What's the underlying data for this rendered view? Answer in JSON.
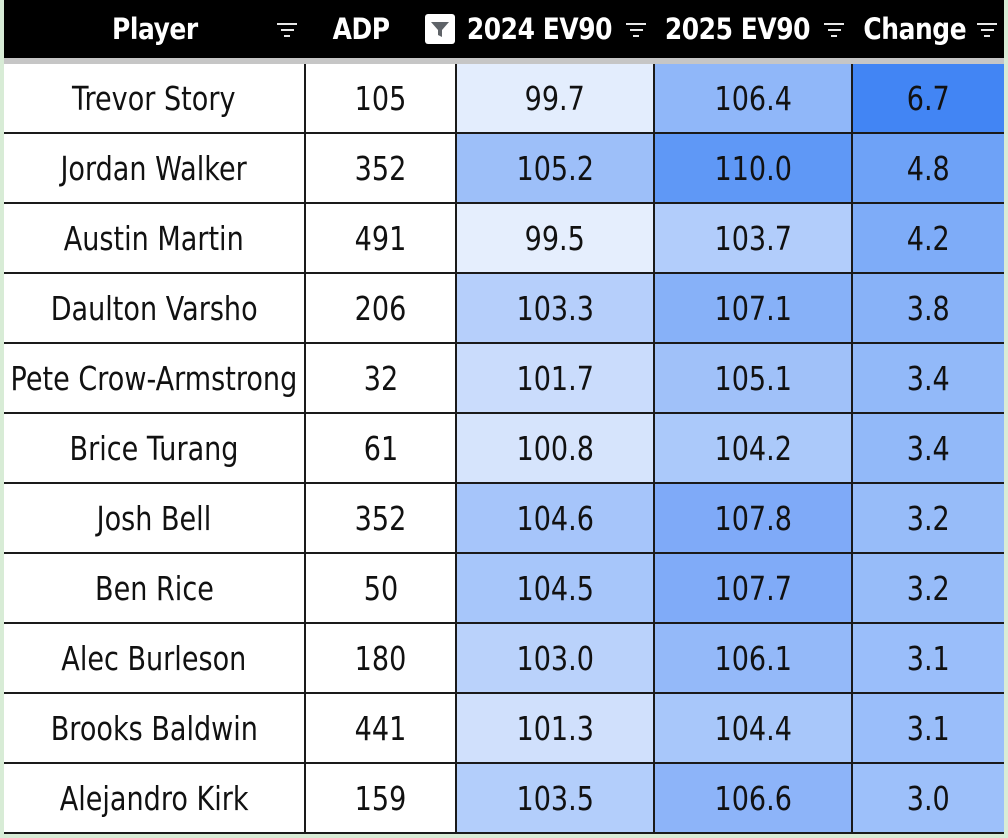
{
  "header": {
    "columns": [
      {
        "label": "Player",
        "filter_icon": "filter-lines-icon"
      },
      {
        "label": "ADP",
        "filter_icon": "filter-active-icon"
      },
      {
        "label": "2024 EV90",
        "filter_icon": "filter-lines-icon"
      },
      {
        "label": "2025 EV90",
        "filter_icon": "filter-lines-icon"
      },
      {
        "label": "Change",
        "filter_icon": "filter-lines-icon"
      }
    ]
  },
  "rows": [
    {
      "player": "Trevor Story",
      "adp": "105",
      "ev2024": "99.7",
      "ev2025": "106.4",
      "change": "6.7",
      "c2024": "#e3edfd",
      "c2025": "#90b7f9",
      "cchg": "#4285f4"
    },
    {
      "player": "Jordan Walker",
      "adp": "352",
      "ev2024": "105.2",
      "ev2025": "110.0",
      "change": "4.8",
      "c2024": "#9dbff9",
      "c2025": "#5f98f6",
      "cchg": "#6ea2f7"
    },
    {
      "player": "Austin Martin",
      "adp": "491",
      "ev2024": "99.5",
      "ev2025": "103.7",
      "change": "4.2",
      "c2024": "#e5eefd",
      "c2025": "#b2cdfb",
      "cchg": "#7eacf8"
    },
    {
      "player": "Daulton Varsho",
      "adp": "206",
      "ev2024": "103.3",
      "ev2025": "107.1",
      "change": "3.8",
      "c2024": "#b6cffb",
      "c2025": "#87b1f8",
      "cchg": "#88b2f8"
    },
    {
      "player": "Pete Crow-Armstrong",
      "adp": "32",
      "ev2024": "101.7",
      "ev2025": "105.1",
      "change": "3.4",
      "c2024": "#cadcfc",
      "c2025": "#a0c1f9",
      "cchg": "#92b9f9"
    },
    {
      "player": "Brice Turang",
      "adp": "61",
      "ev2024": "100.8",
      "ev2025": "104.2",
      "change": "3.4",
      "c2024": "#d6e4fc",
      "c2025": "#abc9fa",
      "cchg": "#92b9f9"
    },
    {
      "player": "Josh Bell",
      "adp": "352",
      "ev2024": "104.6",
      "ev2025": "107.8",
      "change": "3.2",
      "c2024": "#a6c5fa",
      "c2025": "#7faaf8",
      "cchg": "#97bcf9"
    },
    {
      "player": "Ben Rice",
      "adp": "50",
      "ev2024": "104.5",
      "ev2025": "107.7",
      "change": "3.2",
      "c2024": "#a7c6fa",
      "c2025": "#80abf8",
      "cchg": "#97bcf9"
    },
    {
      "player": "Alec Burleson",
      "adp": "180",
      "ev2024": "103.0",
      "ev2025": "106.1",
      "change": "3.1",
      "c2024": "#bad2fb",
      "c2025": "#94b9f9",
      "cchg": "#9abefa"
    },
    {
      "player": "Brooks Baldwin",
      "adp": "441",
      "ev2024": "101.3",
      "ev2025": "104.4",
      "change": "3.1",
      "c2024": "#d0e0fc",
      "c2025": "#a8c7fa",
      "cchg": "#9abefa"
    },
    {
      "player": "Alejandro Kirk",
      "adp": "159",
      "ev2024": "103.5",
      "ev2025": "106.6",
      "change": "3.0",
      "c2024": "#b3cefb",
      "c2025": "#8db4f9",
      "cchg": "#9dc0fa"
    }
  ]
}
